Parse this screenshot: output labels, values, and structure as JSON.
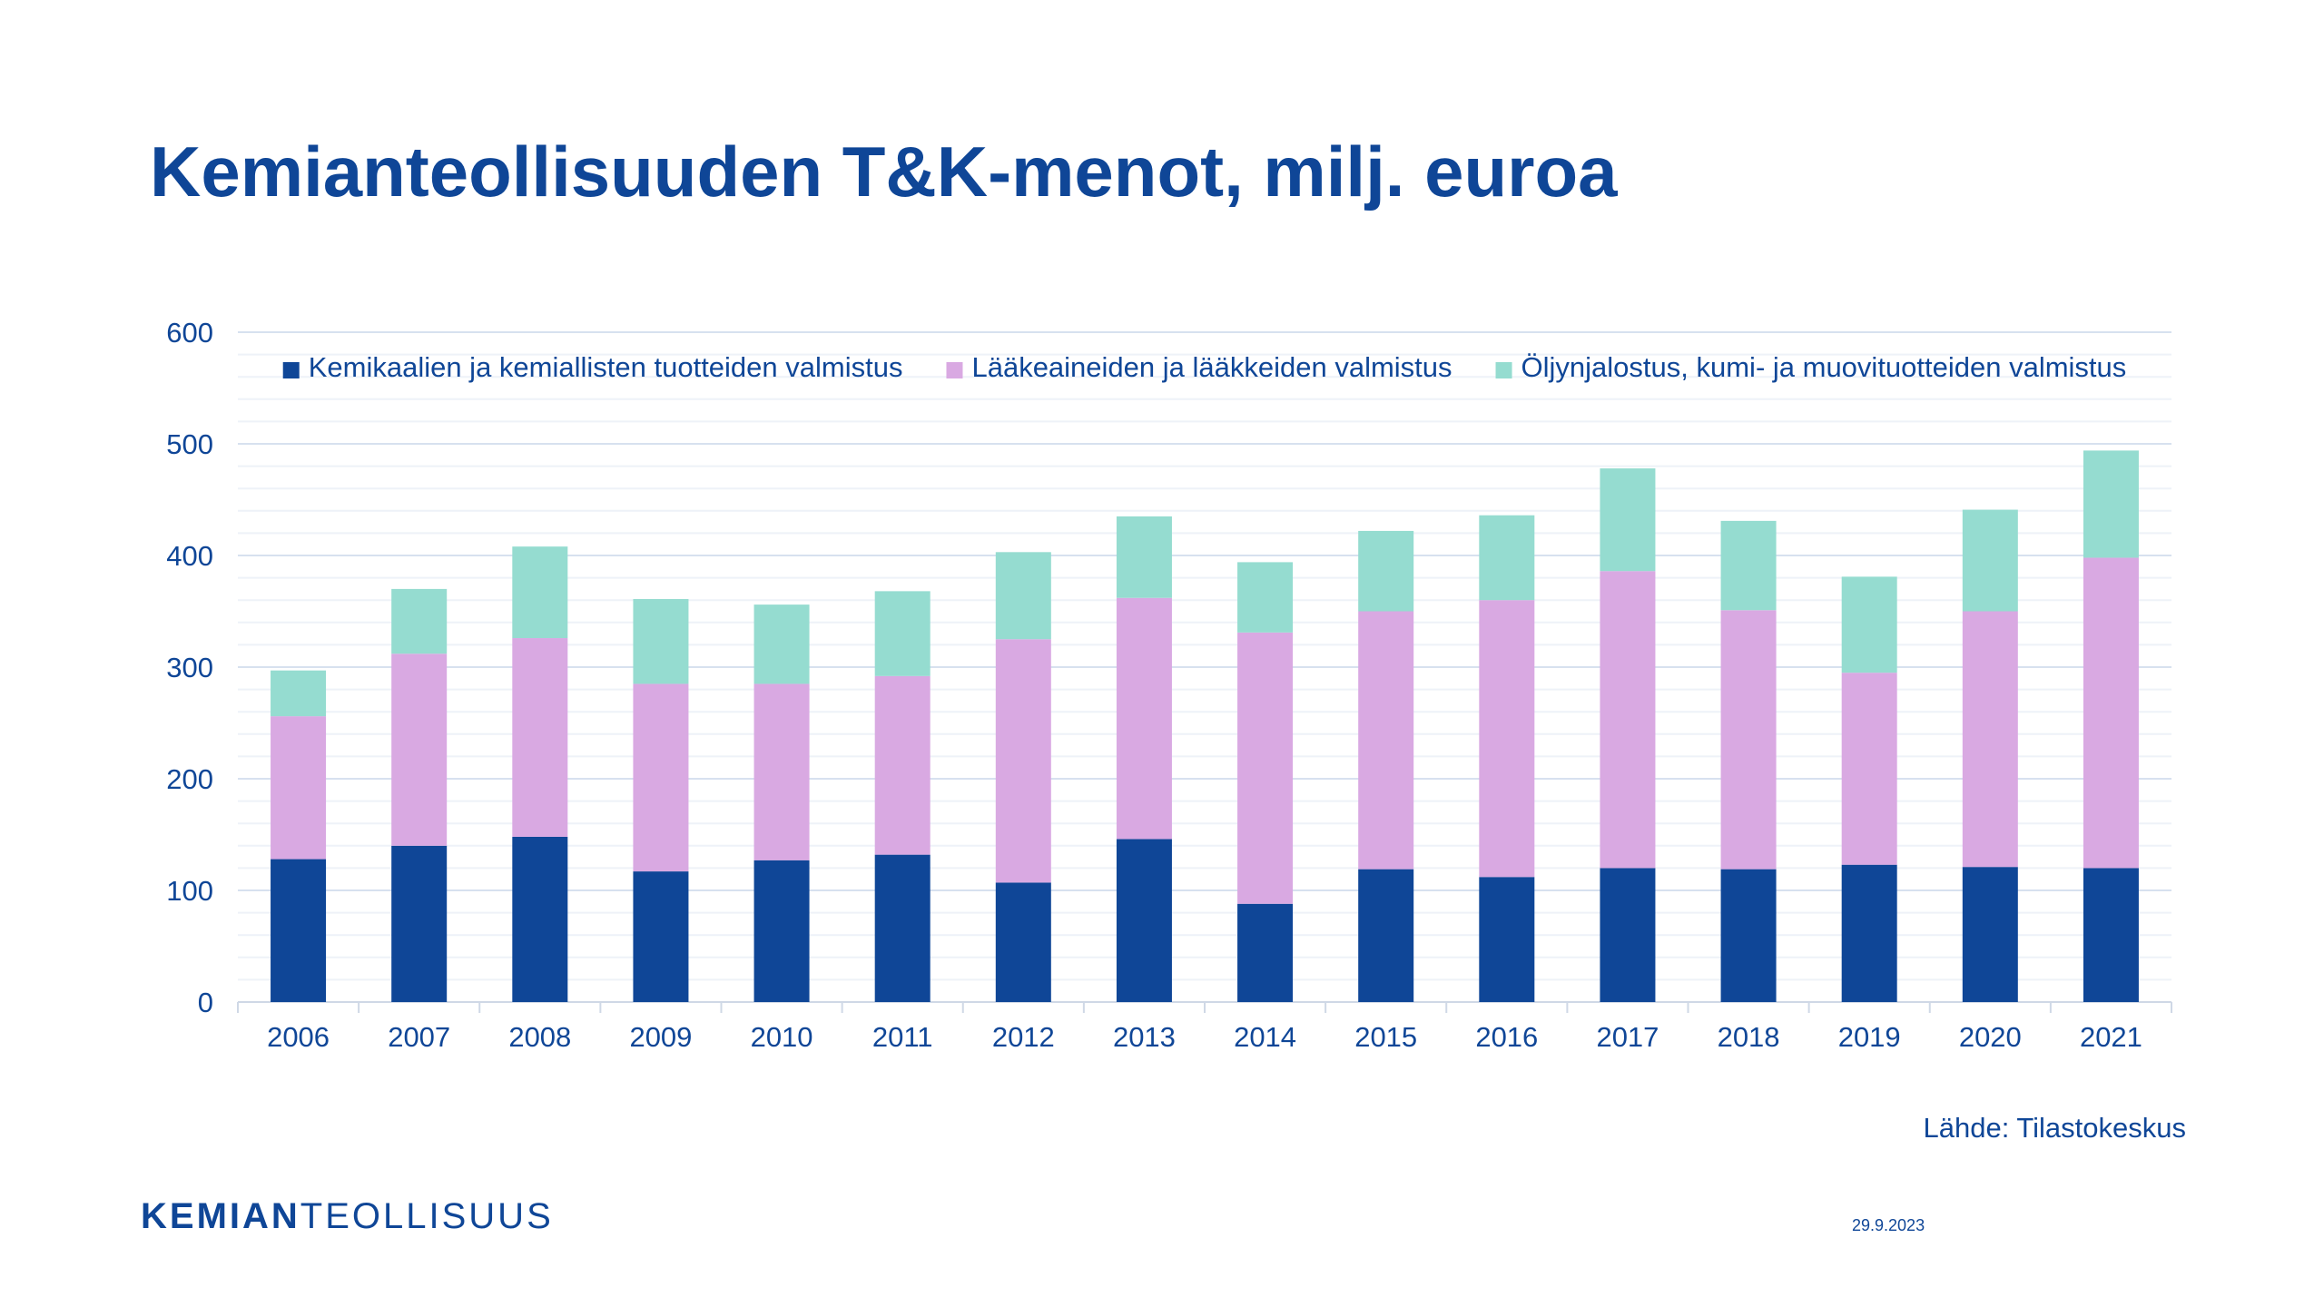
{
  "title": "Kemianteollisuuden T&K-menot, milj. euroa",
  "source": "Lähde: Tilastokeskus",
  "date": "29.9.2023",
  "logo": {
    "bold": "KEMIAN",
    "regular": "TEOLLISUUS"
  },
  "chart_data": {
    "type": "bar",
    "stacked": true,
    "categories": [
      "2006",
      "2007",
      "2008",
      "2009",
      "2010",
      "2011",
      "2012",
      "2013",
      "2014",
      "2015",
      "2016",
      "2017",
      "2018",
      "2019",
      "2020",
      "2021"
    ],
    "series": [
      {
        "name": "Kemikaalien ja kemiallisten tuotteiden valmistus",
        "color": "#0f4697",
        "values": [
          128,
          140,
          148,
          117,
          127,
          132,
          107,
          146,
          88,
          119,
          112,
          120,
          119,
          123,
          121,
          120
        ]
      },
      {
        "name": "Lääkeaineiden ja lääkkeiden valmistus",
        "color": "#d9a9e2",
        "values": [
          128,
          172,
          178,
          168,
          158,
          160,
          218,
          216,
          243,
          231,
          248,
          266,
          232,
          172,
          229,
          278
        ]
      },
      {
        "name": "Öljynjalostus, kumi- ja muovituotteiden valmistus",
        "color": "#95dcd0",
        "values": [
          41,
          58,
          82,
          76,
          71,
          76,
          78,
          73,
          63,
          72,
          76,
          92,
          80,
          86,
          91,
          96
        ]
      }
    ],
    "ylim": [
      0,
      600
    ],
    "yticks": [
      0,
      100,
      200,
      300,
      400,
      500,
      600
    ],
    "grid": true,
    "legend_position": "top"
  }
}
